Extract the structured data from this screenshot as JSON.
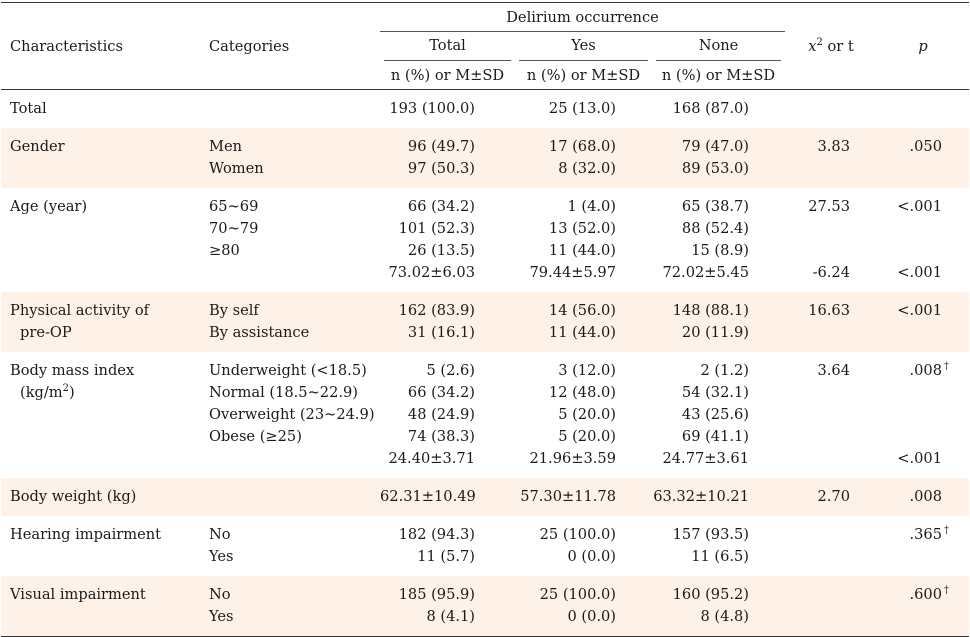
{
  "table": {
    "header": {
      "characteristics": "Characteristics",
      "categories": "Categories",
      "group": "Delirium occurrence",
      "total": "Total",
      "yes": "Yes",
      "none": "None",
      "stat_label_x": "x",
      "stat_label_sup": "2",
      "stat_label_rest": " or t",
      "p": "p",
      "sub_total": "n (%) or M±SD",
      "sub_yes": "n (%) or M±SD",
      "sub_none": "n (%) or M±SD"
    },
    "rows": [
      {
        "char": [
          "Total"
        ],
        "cats": [
          ""
        ],
        "total": [
          "193 (100.0)"
        ],
        "yes": [
          "25 (13.0)"
        ],
        "none": [
          "168 (87.0)"
        ],
        "stat": [
          ""
        ],
        "p": [
          ""
        ],
        "dagger": [
          false
        ]
      },
      {
        "char": [
          "Gender"
        ],
        "cats": [
          "Men",
          "Women"
        ],
        "total": [
          "96 (49.7)",
          "97 (50.3)"
        ],
        "yes": [
          "17 (68.0)",
          "8 (32.0)"
        ],
        "none": [
          "79 (47.0)",
          "89 (53.0)"
        ],
        "stat": [
          "3.83"
        ],
        "p": [
          ".050"
        ],
        "dagger": [
          false
        ]
      },
      {
        "char": [
          "Age (year)"
        ],
        "cats": [
          "65~69",
          "70~79",
          "≥80",
          ""
        ],
        "total": [
          "66 (34.2)",
          "101 (52.3)",
          "26 (13.5)",
          "73.02±6.03"
        ],
        "yes": [
          "1 (4.0)",
          "13 (52.0)",
          "11 (44.0)",
          "79.44±5.97"
        ],
        "none": [
          "65 (38.7)",
          "88 (52.4)",
          "15 (8.9)",
          "72.02±5.45"
        ],
        "stat": [
          "27.53",
          "",
          "",
          "-6.24"
        ],
        "p": [
          "<.001",
          "",
          "",
          "<.001"
        ],
        "dagger": [
          false,
          false,
          false,
          false
        ]
      },
      {
        "char": [
          "Physical activity of",
          "pre-OP"
        ],
        "cats": [
          "By self",
          "By assistance"
        ],
        "total": [
          "162 (83.9)",
          "31 (16.1)"
        ],
        "yes": [
          "14 (56.0)",
          "11 (44.0)"
        ],
        "none": [
          "148 (88.1)",
          "20 (11.9)"
        ],
        "stat": [
          "16.63"
        ],
        "p": [
          "<.001"
        ],
        "dagger": [
          false
        ]
      },
      {
        "char": [
          "Body mass index",
          "(kg/m2)"
        ],
        "cats": [
          "Underweight (<18.5)",
          "Normal (18.5~22.9)",
          "Overweight (23~24.9)",
          "Obese (≥25)",
          ""
        ],
        "total": [
          "5 (2.6)",
          "66 (34.2)",
          "48 (24.9)",
          "74 (38.3)",
          "24.40±3.71"
        ],
        "yes": [
          "3 (12.0)",
          "12 (48.0)",
          "5 (20.0)",
          "5 (20.0)",
          "21.96±3.59"
        ],
        "none": [
          "2 (1.2)",
          "54 (32.1)",
          "43 (25.6)",
          "69 (41.1)",
          "24.77±3.61"
        ],
        "stat": [
          "3.64",
          "",
          "",
          "",
          ""
        ],
        "p": [
          ".008",
          "",
          "",
          "",
          "<.001"
        ],
        "dagger": [
          true,
          false,
          false,
          false,
          false
        ]
      },
      {
        "char": [
          "Body weight (kg)"
        ],
        "cats": [
          ""
        ],
        "total": [
          "62.31±10.49"
        ],
        "yes": [
          "57.30±11.78"
        ],
        "none": [
          "63.32±10.21"
        ],
        "stat": [
          "2.70"
        ],
        "p": [
          ".008"
        ],
        "dagger": [
          false
        ]
      },
      {
        "char": [
          "Hearing impairment"
        ],
        "cats": [
          "No",
          "Yes"
        ],
        "total": [
          "182 (94.3)",
          "11 (5.7)"
        ],
        "yes": [
          "25 (100.0)",
          "0 (0.0)"
        ],
        "none": [
          "157 (93.5)",
          "11 (6.5)"
        ],
        "stat": [
          ""
        ],
        "p": [
          ".365"
        ],
        "dagger": [
          true
        ]
      },
      {
        "char": [
          "Visual impairment"
        ],
        "cats": [
          "No",
          "Yes"
        ],
        "total": [
          "185 (95.9)",
          "8 (4.1)"
        ],
        "yes": [
          "25 (100.0)",
          "0 (0.0)"
        ],
        "none": [
          "160 (95.2)",
          "8 (4.8)"
        ],
        "stat": [
          ""
        ],
        "p": [
          ".600"
        ],
        "dagger": [
          true
        ]
      }
    ],
    "dagger_symbol": "†",
    "row_shading": [
      false,
      true,
      false,
      true,
      false,
      true,
      false,
      true
    ],
    "shade_color": "#fdf1e8"
  }
}
